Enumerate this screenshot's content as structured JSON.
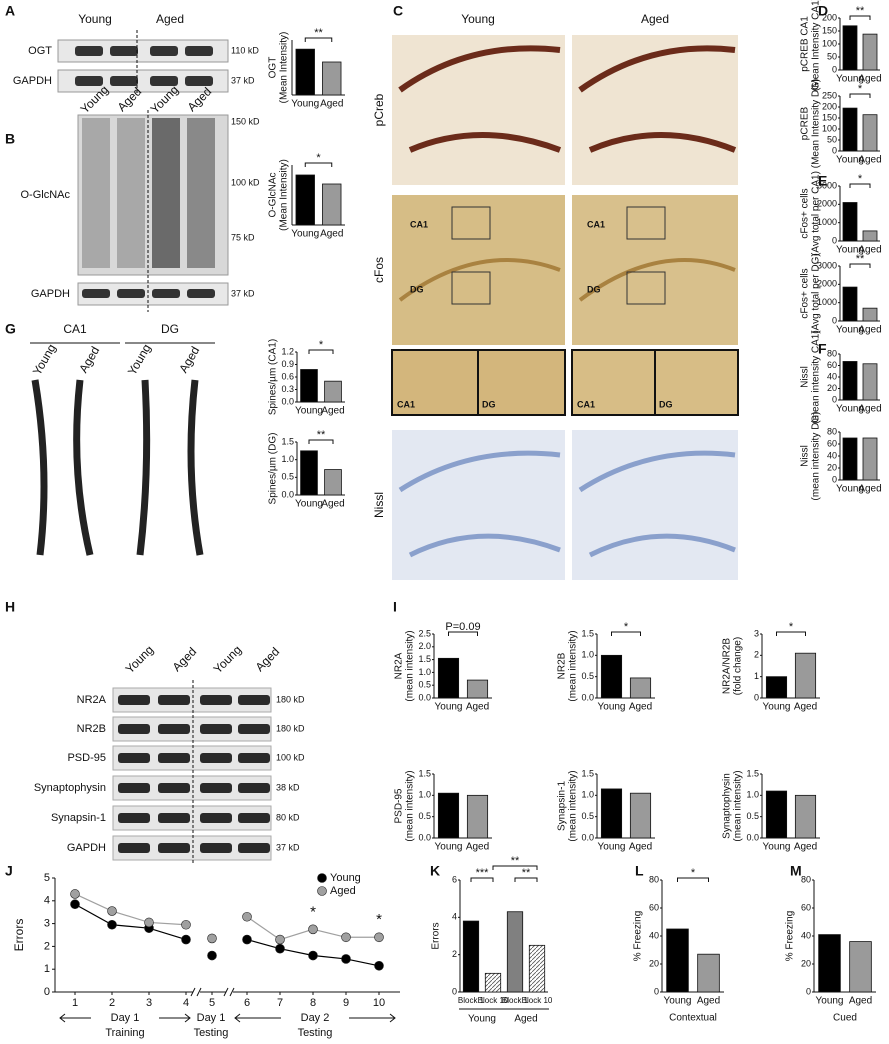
{
  "figure": {
    "panel_letters": [
      "A",
      "B",
      "C",
      "D",
      "E",
      "F",
      "G",
      "H",
      "I",
      "J",
      "K",
      "L",
      "M"
    ]
  },
  "blots": {
    "A": {
      "columns": [
        "Young",
        "Aged"
      ],
      "rows": [
        "OGT",
        "GAPDH"
      ],
      "sizes": [
        "110 kD",
        "37 kD"
      ]
    },
    "B": {
      "columns": [
        "Young",
        "Aged",
        "Young",
        "Aged"
      ],
      "rows": [
        "O-GlcNAc",
        "GAPDH"
      ],
      "sizes": [
        "150 kD",
        "100 kD",
        "75 kD",
        "37 kD"
      ]
    },
    "H": {
      "columns": [
        "Young",
        "Aged",
        "Young",
        "Aged"
      ],
      "rows": [
        "NR2A",
        "NR2B",
        "PSD-95",
        "Synaptophysin",
        "Synapsin-1",
        "GAPDH"
      ],
      "sizes": [
        "180 kD",
        "180 kD",
        "100 kD",
        "38 kD",
        "80 kD",
        "37 kD"
      ]
    }
  },
  "histology": {
    "C": {
      "columns": [
        "Young",
        "Aged"
      ],
      "rows": [
        "pCreb",
        "cFos",
        "Nissl"
      ],
      "regions": [
        "CA1",
        "DG"
      ]
    },
    "G": {
      "regions": [
        "CA1",
        "DG"
      ],
      "columns": [
        "Young",
        "Aged"
      ]
    }
  },
  "chart_data": [
    {
      "type": "bar",
      "ylabel": [
        "OGT",
        "(Mean Intensity)"
      ],
      "categories": [
        "Young",
        "Aged"
      ],
      "values": [
        1.0,
        0.72
      ],
      "colors": [
        "#000000",
        "#9a9a9a"
      ],
      "ylim": [
        0,
        1.2
      ],
      "annotations": [
        "**"
      ]
    },
    {
      "type": "bar",
      "ylabel": [
        "O-GlcNAc",
        "(Mean Intensity)"
      ],
      "categories": [
        "Young",
        "Aged"
      ],
      "values": [
        1.0,
        0.82
      ],
      "colors": [
        "#000000",
        "#9a9a9a"
      ],
      "ylim": [
        0,
        1.2
      ],
      "annotations": [
        "*"
      ]
    },
    {
      "type": "bar",
      "ylabel": [
        "pCREB CA1",
        "(Mean Intensity CA1)"
      ],
      "categories": [
        "Young",
        "Aged"
      ],
      "values": [
        170,
        138
      ],
      "colors": [
        "#000000",
        "#9a9a9a"
      ],
      "ylim": [
        0,
        200
      ],
      "yticks": [
        0,
        50,
        100,
        150,
        200
      ],
      "annotations": [
        "**"
      ]
    },
    {
      "type": "bar",
      "ylabel": [
        "pCREB",
        "(Mean Intensity DG)"
      ],
      "categories": [
        "Young",
        "Aged"
      ],
      "values": [
        195,
        165
      ],
      "colors": [
        "#000000",
        "#9a9a9a"
      ],
      "ylim": [
        0,
        250
      ],
      "yticks": [
        0,
        50,
        100,
        150,
        200,
        250
      ],
      "annotations": [
        "*"
      ]
    },
    {
      "type": "bar",
      "ylabel": [
        "cFos+ cells",
        "(Avg total per CA1)"
      ],
      "categories": [
        "Young",
        "Aged"
      ],
      "values": [
        2100,
        550
      ],
      "colors": [
        "#000000",
        "#9a9a9a"
      ],
      "ylim": [
        0,
        3000
      ],
      "yticks": [
        0,
        1000,
        2000,
        3000
      ],
      "annotations": [
        "*"
      ]
    },
    {
      "type": "bar",
      "ylabel": [
        "cFos+ cells",
        "(Avg total per DG)"
      ],
      "categories": [
        "Young",
        "Aged"
      ],
      "values": [
        1850,
        700
      ],
      "colors": [
        "#000000",
        "#9a9a9a"
      ],
      "ylim": [
        0,
        3000
      ],
      "yticks": [
        0,
        1000,
        2000,
        3000
      ],
      "annotations": [
        "**"
      ]
    },
    {
      "type": "bar",
      "ylabel": [
        "Nissl",
        "(mean intensity CA1)"
      ],
      "categories": [
        "Young",
        "Aged"
      ],
      "values": [
        67,
        63
      ],
      "colors": [
        "#000000",
        "#9a9a9a"
      ],
      "ylim": [
        0,
        80
      ],
      "yticks": [
        0,
        20,
        40,
        60,
        80
      ]
    },
    {
      "type": "bar",
      "ylabel": [
        "Nissl",
        "(mean intensity DG)"
      ],
      "categories": [
        "Young",
        "Aged"
      ],
      "values": [
        70,
        70
      ],
      "colors": [
        "#000000",
        "#9a9a9a"
      ],
      "ylim": [
        0,
        80
      ],
      "yticks": [
        0,
        20,
        40,
        60,
        80
      ]
    },
    {
      "type": "bar",
      "ylabel": [
        "Spines/µm (CA1)"
      ],
      "categories": [
        "Young",
        "Aged"
      ],
      "values": [
        0.78,
        0.5
      ],
      "colors": [
        "#000000",
        "#9a9a9a"
      ],
      "ylim": [
        0,
        1.2
      ],
      "yticks": [
        {
          "value": 0,
          "label": "0.0"
        },
        0.3,
        0.6,
        0.9,
        1.2
      ],
      "annotations": [
        "*"
      ]
    },
    {
      "type": "bar",
      "ylabel": [
        "Spines/µm (DG)"
      ],
      "categories": [
        "Young",
        "Aged"
      ],
      "values": [
        1.25,
        0.72
      ],
      "colors": [
        "#000000",
        "#9a9a9a"
      ],
      "ylim": [
        0,
        1.5
      ],
      "yticks": [
        {
          "value": 0,
          "label": "0.0"
        },
        0.5,
        {
          "value": 1,
          "label": "1.0"
        },
        1.5
      ],
      "annotations": [
        "**"
      ]
    },
    {
      "type": "bar",
      "ylabel": [
        "NR2A",
        "(mean intensity)"
      ],
      "categories": [
        "Young",
        "Aged"
      ],
      "values": [
        1.55,
        0.7
      ],
      "colors": [
        "#000000",
        "#9a9a9a"
      ],
      "ylim": [
        0,
        2.5
      ],
      "yticks": [
        {
          "value": 0,
          "label": "0.0"
        },
        0.5,
        {
          "value": 1,
          "label": "1.0"
        },
        1.5,
        {
          "value": 2,
          "label": "2.0"
        },
        2.5
      ],
      "annotations": [
        "P=0.09"
      ]
    },
    {
      "type": "bar",
      "ylabel": [
        "NR2B",
        "(mean intensity)"
      ],
      "categories": [
        "Young",
        "Aged"
      ],
      "values": [
        1.0,
        0.47
      ],
      "colors": [
        "#000000",
        "#9a9a9a"
      ],
      "ylim": [
        0,
        1.5
      ],
      "yticks": [
        {
          "value": 0,
          "label": "0.0"
        },
        0.5,
        {
          "value": 1,
          "label": "1.0"
        },
        1.5
      ],
      "annotations": [
        "*"
      ]
    },
    {
      "type": "bar",
      "ylabel": [
        "NR2A/NR2B",
        "(fold change)"
      ],
      "categories": [
        "Young",
        "Aged"
      ],
      "values": [
        1.0,
        2.1
      ],
      "colors": [
        "#000000",
        "#9a9a9a"
      ],
      "ylim": [
        0,
        3
      ],
      "yticks": [
        0,
        1,
        2,
        3
      ],
      "annotations": [
        "*"
      ]
    },
    {
      "type": "bar",
      "ylabel": [
        "PSD-95",
        "(mean intensity)"
      ],
      "categories": [
        "Young",
        "Aged"
      ],
      "values": [
        1.05,
        1.0
      ],
      "colors": [
        "#000000",
        "#9a9a9a"
      ],
      "ylim": [
        0,
        1.5
      ],
      "yticks": [
        {
          "value": 0,
          "label": "0.0"
        },
        0.5,
        {
          "value": 1,
          "label": "1.0"
        },
        1.5
      ]
    },
    {
      "type": "bar",
      "ylabel": [
        "Synapsin-1",
        "(mean intensity)"
      ],
      "categories": [
        "Young",
        "Aged"
      ],
      "values": [
        1.15,
        1.05
      ],
      "colors": [
        "#000000",
        "#9a9a9a"
      ],
      "ylim": [
        0,
        1.5
      ],
      "yticks": [
        {
          "value": 0,
          "label": "0.0"
        },
        0.5,
        {
          "value": 1,
          "label": "1.0"
        },
        1.5
      ]
    },
    {
      "type": "bar",
      "ylabel": [
        "Synaptophysin",
        "(mean intensity)"
      ],
      "categories": [
        "Young",
        "Aged"
      ],
      "values": [
        1.1,
        1.0
      ],
      "colors": [
        "#000000",
        "#9a9a9a"
      ],
      "ylim": [
        0,
        1.5
      ],
      "yticks": [
        {
          "value": 0,
          "label": "0.0"
        },
        0.5,
        {
          "value": 1,
          "label": "1.0"
        },
        1.5
      ]
    },
    {
      "type": "line",
      "ylabel": [
        "Errors"
      ],
      "x": [
        1,
        2,
        3,
        4,
        5,
        6,
        7,
        8,
        9,
        10
      ],
      "xticks": [
        1,
        2,
        3,
        4,
        5,
        6,
        7,
        8,
        9,
        10
      ],
      "ylim": [
        0,
        5
      ],
      "yticks": [
        0,
        1,
        2,
        3,
        4,
        5
      ],
      "series": [
        {
          "name": "Young",
          "color": "#000000",
          "values": [
            3.85,
            2.95,
            2.8,
            2.3,
            1.6,
            2.3,
            1.9,
            1.6,
            1.45,
            1.15
          ]
        },
        {
          "name": "Aged",
          "color": "#a0a0a0",
          "values": [
            4.3,
            3.55,
            3.05,
            2.95,
            2.35,
            3.3,
            2.3,
            2.75,
            2.4,
            2.4
          ]
        }
      ],
      "annotations": [
        "*",
        "*"
      ],
      "phases": [
        [
          "Day 1",
          "Training"
        ],
        [
          "Day 1",
          "Testing"
        ],
        [
          "Day 2",
          "Testing"
        ]
      ]
    },
    {
      "type": "bar",
      "ylabel": [
        "Errors"
      ],
      "categories": [
        "Block 1",
        "Block 10",
        "Block 1",
        "Block 10"
      ],
      "groups": [
        "Young",
        "Aged"
      ],
      "values": [
        3.8,
        1.0,
        4.3,
        2.5
      ],
      "colors": [
        "#000000",
        "#ffffff",
        "#808080",
        "#ffffff"
      ],
      "ylim": [
        0,
        6
      ],
      "yticks": [
        0,
        2,
        4,
        6
      ],
      "annotations": [
        "***",
        "**",
        "**"
      ]
    },
    {
      "type": "bar",
      "ylabel": [
        "% Freezing"
      ],
      "xlabel": "Contextual",
      "categories": [
        "Young",
        "Aged"
      ],
      "values": [
        45,
        27
      ],
      "colors": [
        "#000000",
        "#9a9a9a"
      ],
      "ylim": [
        0,
        80
      ],
      "yticks": [
        0,
        20,
        40,
        60,
        80
      ],
      "annotations": [
        "*"
      ]
    },
    {
      "type": "bar",
      "ylabel": [
        "% Freezing"
      ],
      "xlabel": "Cued",
      "categories": [
        "Young",
        "Aged"
      ],
      "values": [
        41,
        36
      ],
      "colors": [
        "#000000",
        "#9a9a9a"
      ],
      "ylim": [
        0,
        80
      ],
      "yticks": [
        0,
        20,
        40,
        60,
        80
      ]
    }
  ]
}
